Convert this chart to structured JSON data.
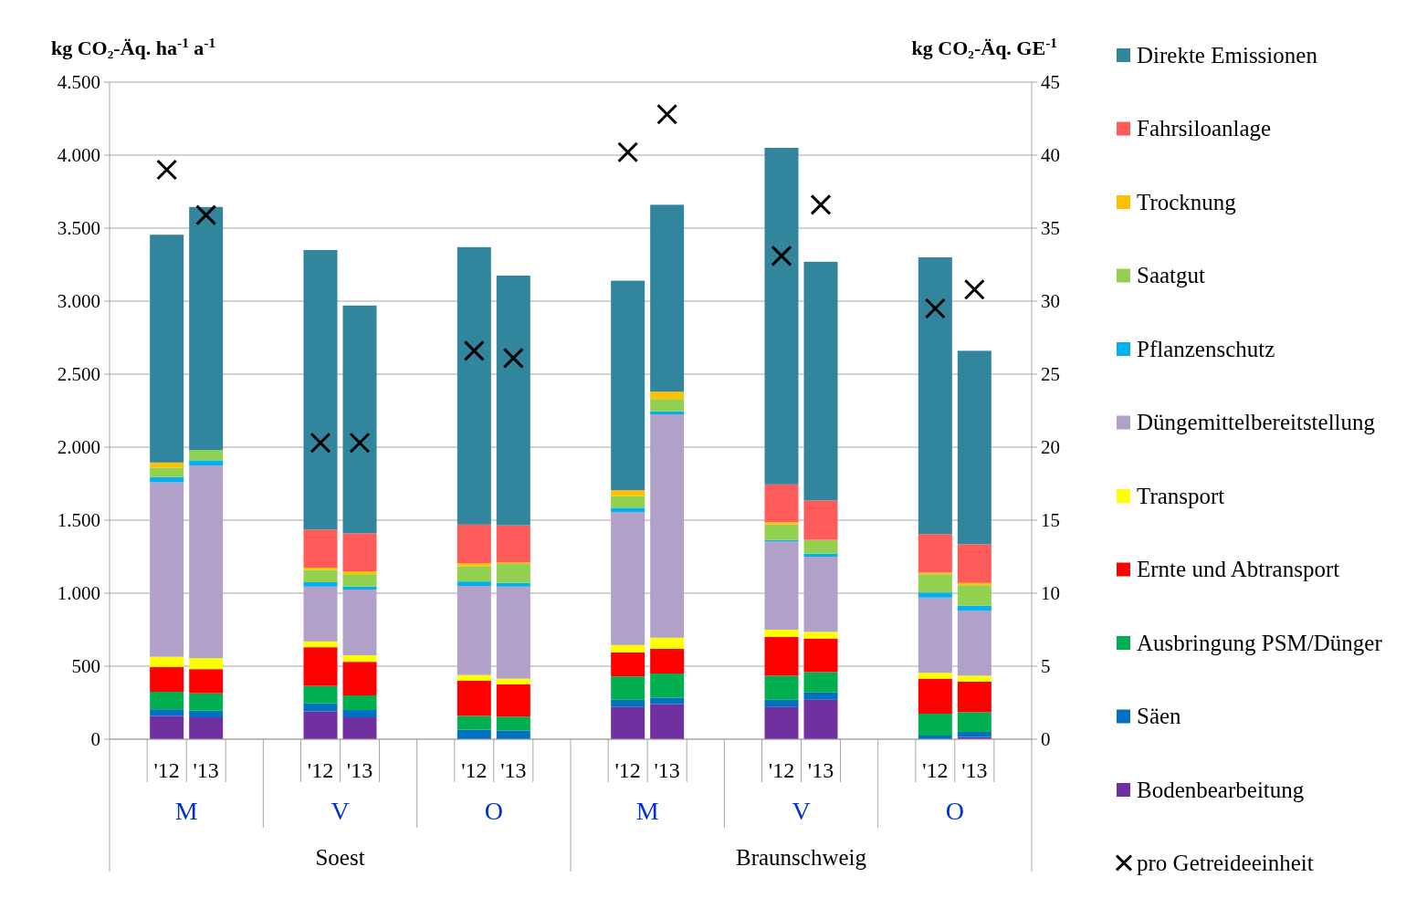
{
  "chart_data": {
    "type": "bar",
    "stacked": true,
    "ylabel": "kg CO₂-Äq. ha$^{-1}$ a$^{-1}$",
    "y2label": "kg CO₂-Äq.  GE$^{-1}$",
    "categories": [
      "'12",
      "'13",
      "'12",
      "'13",
      "'12",
      "'13",
      "'12",
      "'13",
      "'12",
      "'13",
      "'12",
      "'13"
    ],
    "annotations": [
      "M",
      "V",
      "O",
      "M",
      "V",
      "O",
      "Soest",
      "Braunschweig"
    ],
    "ylim": [
      0,
      4500
    ],
    "yticks": [
      0,
      500,
      {
        "value": 1000,
        "label": "1.000"
      },
      {
        "value": 1500,
        "label": "1.500"
      },
      {
        "value": 2000,
        "label": "2.000"
      },
      {
        "value": 2500,
        "label": "2.500"
      },
      {
        "value": 3000,
        "label": "3.000"
      },
      {
        "value": 3500,
        "label": "3.500"
      },
      {
        "value": 4000,
        "label": "4.000"
      },
      {
        "value": 4500,
        "label": "4.500"
      }
    ],
    "y2lim": [
      0,
      45
    ],
    "y2ticks": [
      0,
      5,
      10,
      15,
      20,
      25,
      30,
      35,
      40,
      45
    ],
    "grid": "y",
    "legend": "right",
    "series": [
      {
        "name": "Bodenbearbeitung",
        "color": "#7030a0",
        "values": [
          160,
          150,
          190,
          150,
          0,
          0,
          220,
          240,
          220,
          270,
          0,
          15
        ]
      },
      {
        "name": "Säen",
        "color": "#0070c0",
        "values": [
          45,
          45,
          55,
          50,
          65,
          60,
          50,
          45,
          50,
          50,
          25,
          35
        ]
      },
      {
        "name": "Ausbringung PSM/Dünger",
        "color": "#00b050",
        "values": [
          120,
          120,
          120,
          100,
          95,
          95,
          160,
          165,
          165,
          140,
          150,
          135
        ]
      },
      {
        "name": "Ernte und Abtransport",
        "color": "#ff0000",
        "values": [
          170,
          165,
          265,
          230,
          240,
          220,
          165,
          170,
          265,
          230,
          240,
          210
        ]
      },
      {
        "name": "Transport",
        "color": "#ffff00",
        "values": [
          70,
          75,
          40,
          45,
          40,
          40,
          50,
          75,
          50,
          45,
          40,
          40
        ]
      },
      {
        "name": "Düngemittelbereitstellung",
        "color": "#b1a0c7",
        "values": [
          1195,
          1320,
          375,
          450,
          610,
          630,
          910,
          1530,
          605,
          515,
          515,
          445
        ]
      },
      {
        "name": "Pflanzenschutz",
        "color": "#00b0f0",
        "values": [
          35,
          35,
          30,
          20,
          30,
          25,
          30,
          20,
          10,
          20,
          35,
          35
        ]
      },
      {
        "name": "Saatgut",
        "color": "#92d050",
        "values": [
          65,
          70,
          85,
          85,
          105,
          130,
          80,
          85,
          105,
          95,
          125,
          140
        ]
      },
      {
        "name": "Trocknung",
        "color": "#ffc000",
        "values": [
          35,
          0,
          15,
          20,
          20,
          10,
          40,
          50,
          15,
          0,
          10,
          15
        ]
      },
      {
        "name": "Fahrsiloanlage",
        "color": "#ff5b5b",
        "values": [
          0,
          0,
          260,
          260,
          265,
          255,
          0,
          0,
          260,
          270,
          265,
          265
        ]
      },
      {
        "name": "Direkte Emissionen",
        "color": "#31859c",
        "values": [
          1560,
          1665,
          1915,
          1560,
          1900,
          1710,
          1435,
          1280,
          2305,
          1635,
          1895,
          1325
        ]
      },
      {
        "name": "pro Getreideeinheit",
        "type": "scatter",
        "axis": "y2",
        "marker": "cross",
        "color": "#000000",
        "values": [
          39.0,
          35.9,
          20.3,
          20.3,
          26.6,
          26.1,
          40.2,
          42.8,
          33.1,
          36.6,
          29.5,
          30.8
        ]
      }
    ]
  }
}
